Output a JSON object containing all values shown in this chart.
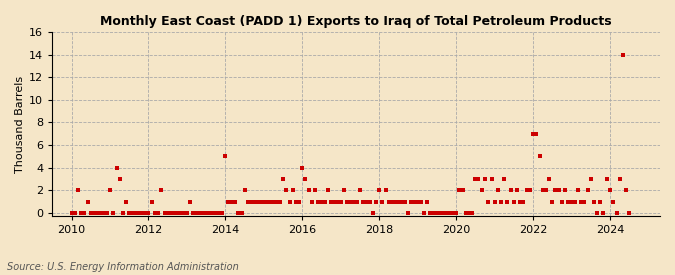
{
  "title": "Monthly East Coast (PADD 1) Exports to Iraq of Total Petroleum Products",
  "ylabel": "Thousand Barrels",
  "source": "Source: U.S. Energy Information Administration",
  "background_color": "#f5e6c8",
  "plot_bg_color": "#f5e6c8",
  "marker_color": "#cc0000",
  "xlim": [
    2009.5,
    2025.3
  ],
  "ylim": [
    -0.3,
    16
  ],
  "yticks": [
    0,
    2,
    4,
    6,
    8,
    10,
    12,
    14,
    16
  ],
  "xticks": [
    2010,
    2012,
    2014,
    2016,
    2018,
    2020,
    2022,
    2024
  ],
  "data": [
    [
      2010.0,
      0
    ],
    [
      2010.08,
      0
    ],
    [
      2010.17,
      2
    ],
    [
      2010.25,
      0
    ],
    [
      2010.33,
      0
    ],
    [
      2010.42,
      1
    ],
    [
      2010.5,
      0
    ],
    [
      2010.58,
      0
    ],
    [
      2010.67,
      0
    ],
    [
      2010.75,
      0
    ],
    [
      2010.83,
      0
    ],
    [
      2010.92,
      0
    ],
    [
      2011.0,
      2
    ],
    [
      2011.08,
      0
    ],
    [
      2011.17,
      4
    ],
    [
      2011.25,
      3
    ],
    [
      2011.33,
      0
    ],
    [
      2011.42,
      1
    ],
    [
      2011.5,
      0
    ],
    [
      2011.58,
      0
    ],
    [
      2011.67,
      0
    ],
    [
      2011.75,
      0
    ],
    [
      2011.83,
      0
    ],
    [
      2011.92,
      0
    ],
    [
      2012.0,
      0
    ],
    [
      2012.08,
      1
    ],
    [
      2012.17,
      0
    ],
    [
      2012.25,
      0
    ],
    [
      2012.33,
      2
    ],
    [
      2012.42,
      0
    ],
    [
      2012.5,
      0
    ],
    [
      2012.58,
      0
    ],
    [
      2012.67,
      0
    ],
    [
      2012.75,
      0
    ],
    [
      2012.83,
      0
    ],
    [
      2012.92,
      0
    ],
    [
      2013.0,
      0
    ],
    [
      2013.08,
      1
    ],
    [
      2013.17,
      0
    ],
    [
      2013.25,
      0
    ],
    [
      2013.33,
      0
    ],
    [
      2013.42,
      0
    ],
    [
      2013.5,
      0
    ],
    [
      2013.58,
      0
    ],
    [
      2013.67,
      0
    ],
    [
      2013.75,
      0
    ],
    [
      2013.83,
      0
    ],
    [
      2013.92,
      0
    ],
    [
      2014.0,
      5
    ],
    [
      2014.08,
      1
    ],
    [
      2014.17,
      1
    ],
    [
      2014.25,
      1
    ],
    [
      2014.33,
      0
    ],
    [
      2014.42,
      0
    ],
    [
      2014.5,
      2
    ],
    [
      2014.58,
      1
    ],
    [
      2014.67,
      1
    ],
    [
      2014.75,
      1
    ],
    [
      2014.83,
      1
    ],
    [
      2014.92,
      1
    ],
    [
      2015.0,
      1
    ],
    [
      2015.08,
      1
    ],
    [
      2015.17,
      1
    ],
    [
      2015.25,
      1
    ],
    [
      2015.33,
      1
    ],
    [
      2015.42,
      1
    ],
    [
      2015.5,
      3
    ],
    [
      2015.58,
      2
    ],
    [
      2015.67,
      1
    ],
    [
      2015.75,
      2
    ],
    [
      2015.83,
      1
    ],
    [
      2015.92,
      1
    ],
    [
      2016.0,
      4
    ],
    [
      2016.08,
      3
    ],
    [
      2016.17,
      2
    ],
    [
      2016.25,
      1
    ],
    [
      2016.33,
      2
    ],
    [
      2016.42,
      1
    ],
    [
      2016.5,
      1
    ],
    [
      2016.58,
      1
    ],
    [
      2016.67,
      2
    ],
    [
      2016.75,
      1
    ],
    [
      2016.83,
      1
    ],
    [
      2016.92,
      1
    ],
    [
      2017.0,
      1
    ],
    [
      2017.08,
      2
    ],
    [
      2017.17,
      1
    ],
    [
      2017.25,
      1
    ],
    [
      2017.33,
      1
    ],
    [
      2017.42,
      1
    ],
    [
      2017.5,
      2
    ],
    [
      2017.58,
      1
    ],
    [
      2017.67,
      1
    ],
    [
      2017.75,
      1
    ],
    [
      2017.83,
      0
    ],
    [
      2017.92,
      1
    ],
    [
      2018.0,
      2
    ],
    [
      2018.08,
      1
    ],
    [
      2018.17,
      2
    ],
    [
      2018.25,
      1
    ],
    [
      2018.33,
      1
    ],
    [
      2018.42,
      1
    ],
    [
      2018.5,
      1
    ],
    [
      2018.58,
      1
    ],
    [
      2018.67,
      1
    ],
    [
      2018.75,
      0
    ],
    [
      2018.83,
      1
    ],
    [
      2018.92,
      1
    ],
    [
      2019.0,
      1
    ],
    [
      2019.08,
      1
    ],
    [
      2019.17,
      0
    ],
    [
      2019.25,
      1
    ],
    [
      2019.33,
      0
    ],
    [
      2019.42,
      0
    ],
    [
      2019.5,
      0
    ],
    [
      2019.58,
      0
    ],
    [
      2019.67,
      0
    ],
    [
      2019.75,
      0
    ],
    [
      2019.83,
      0
    ],
    [
      2019.92,
      0
    ],
    [
      2020.0,
      0
    ],
    [
      2020.08,
      2
    ],
    [
      2020.17,
      2
    ],
    [
      2020.25,
      0
    ],
    [
      2020.33,
      0
    ],
    [
      2020.42,
      0
    ],
    [
      2020.5,
      3
    ],
    [
      2020.58,
      3
    ],
    [
      2020.67,
      2
    ],
    [
      2020.75,
      3
    ],
    [
      2020.83,
      1
    ],
    [
      2020.92,
      3
    ],
    [
      2021.0,
      1
    ],
    [
      2021.08,
      2
    ],
    [
      2021.17,
      1
    ],
    [
      2021.25,
      3
    ],
    [
      2021.33,
      1
    ],
    [
      2021.42,
      2
    ],
    [
      2021.5,
      1
    ],
    [
      2021.58,
      2
    ],
    [
      2021.67,
      1
    ],
    [
      2021.75,
      1
    ],
    [
      2021.83,
      2
    ],
    [
      2021.92,
      2
    ],
    [
      2022.0,
      7
    ],
    [
      2022.08,
      7
    ],
    [
      2022.17,
      5
    ],
    [
      2022.25,
      2
    ],
    [
      2022.33,
      2
    ],
    [
      2022.42,
      3
    ],
    [
      2022.5,
      1
    ],
    [
      2022.58,
      2
    ],
    [
      2022.67,
      2
    ],
    [
      2022.75,
      1
    ],
    [
      2022.83,
      2
    ],
    [
      2022.92,
      1
    ],
    [
      2023.0,
      1
    ],
    [
      2023.08,
      1
    ],
    [
      2023.17,
      2
    ],
    [
      2023.25,
      1
    ],
    [
      2023.33,
      1
    ],
    [
      2023.42,
      2
    ],
    [
      2023.5,
      3
    ],
    [
      2023.58,
      1
    ],
    [
      2023.67,
      0
    ],
    [
      2023.75,
      1
    ],
    [
      2023.83,
      0
    ],
    [
      2023.92,
      3
    ],
    [
      2024.0,
      2
    ],
    [
      2024.08,
      1
    ],
    [
      2024.17,
      0
    ],
    [
      2024.25,
      3
    ],
    [
      2024.33,
      14
    ],
    [
      2024.42,
      2
    ],
    [
      2024.5,
      0
    ]
  ]
}
